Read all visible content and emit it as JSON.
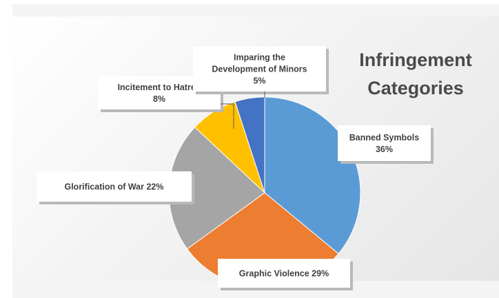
{
  "chart_data": {
    "type": "pie",
    "title_lines": [
      "Infringement",
      "Categories"
    ],
    "slices": [
      {
        "name": "Banned Symbols",
        "value": 36,
        "label": "36%",
        "color": "#5b9bd5"
      },
      {
        "name": "Graphic Violence",
        "value": 29,
        "label": "29%",
        "color": "#ed7d31"
      },
      {
        "name": "Glorification of War",
        "value": 22,
        "label": "22%",
        "color": "#a5a5a5"
      },
      {
        "name": "Incitement to Hatred",
        "value": 8,
        "label": "8%",
        "color": "#ffc000"
      },
      {
        "name": "Imparing the Development of Minors",
        "value": 5,
        "label": "5%",
        "color": "#4472c4"
      }
    ],
    "data_labels": [
      {
        "lines": [
          "Banned Symbols",
          "36%"
        ]
      },
      {
        "lines": [
          "Graphic Violence 29%"
        ]
      },
      {
        "lines": [
          "Glorification of War 22%"
        ]
      },
      {
        "lines": [
          "Incitement to Hatred",
          "8%"
        ]
      },
      {
        "lines": [
          "Imparing the",
          "Development of Minors",
          "5%"
        ]
      }
    ],
    "legend": "none"
  }
}
